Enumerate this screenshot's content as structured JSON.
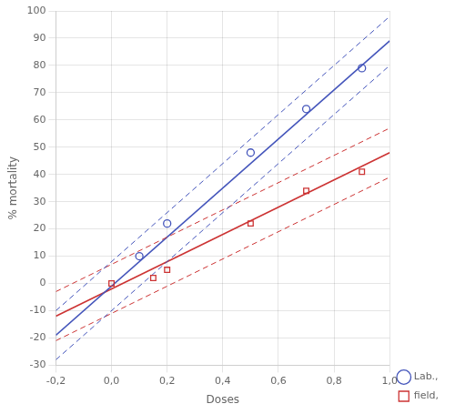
{
  "chart_data": {
    "type": "scatter",
    "xlabel": "Doses",
    "ylabel": "% mortality",
    "xlim": [
      -0.2,
      1.0
    ],
    "ylim": [
      -30,
      100
    ],
    "xticks": [
      {
        "value": -0.2,
        "label": "-0,2"
      },
      {
        "value": 0.0,
        "label": "0,0"
      },
      {
        "value": 0.2,
        "label": "0,2"
      },
      {
        "value": 0.4,
        "label": "0,4"
      },
      {
        "value": 0.6,
        "label": "0,6"
      },
      {
        "value": 0.8,
        "label": "0,8"
      },
      {
        "value": 1.0,
        "label": "1,0"
      }
    ],
    "yticks": [
      -30,
      -20,
      -10,
      0,
      10,
      20,
      30,
      40,
      50,
      60,
      70,
      80,
      90,
      100
    ],
    "grid": true,
    "legend": "right",
    "series": [
      {
        "name": "Lab.,",
        "type": "scatter",
        "color": "#4455bb",
        "marker": "circle",
        "x": [
          0.1,
          0.2,
          0.5,
          0.7,
          0.9
        ],
        "values": [
          10,
          22,
          48,
          64,
          79
        ]
      },
      {
        "name": "field,",
        "type": "scatter",
        "color": "#cc3333",
        "marker": "square",
        "x": [
          0.0,
          0.15,
          0.2,
          0.5,
          0.7,
          0.9
        ],
        "values": [
          0,
          2,
          5,
          22,
          34,
          41
        ]
      },
      {
        "type": "line",
        "color": "#4455bb",
        "line_style": "dashed",
        "x": [
          -0.2,
          1.0
        ],
        "values": [
          -10,
          98
        ]
      },
      {
        "type": "line",
        "color": "#4455bb",
        "line_style": "dashed",
        "x": [
          -0.2,
          1.0
        ],
        "values": [
          -28,
          80
        ]
      },
      {
        "type": "line",
        "color": "#cc3333",
        "line_style": "dashed",
        "x": [
          -0.2,
          1.0
        ],
        "values": [
          -3,
          57
        ]
      },
      {
        "type": "line",
        "color": "#cc3333",
        "line_style": "dashed",
        "x": [
          -0.2,
          1.0
        ],
        "values": [
          -21,
          39
        ]
      },
      {
        "type": "line",
        "color": "#4455bb",
        "line_style": "solid",
        "x": [
          -0.2,
          1.0
        ],
        "values": [
          -19,
          89
        ]
      },
      {
        "type": "line",
        "color": "#cc3333",
        "line_style": "solid",
        "x": [
          -0.2,
          1.0
        ],
        "values": [
          -12,
          48
        ]
      }
    ]
  }
}
